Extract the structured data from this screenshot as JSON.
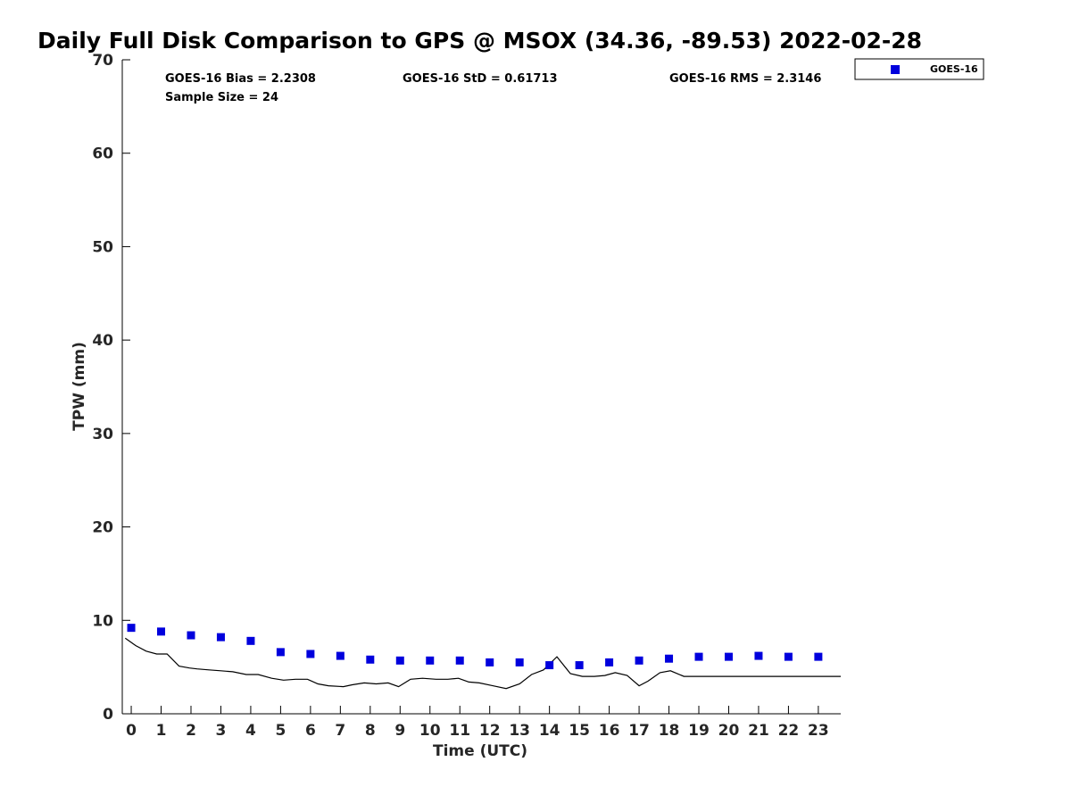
{
  "chart_data": {
    "type": "scatter",
    "title": "Daily Full Disk Comparison to GPS @ MSOX (34.36, -89.53) 2022-02-28",
    "xlabel": "Time (UTC)",
    "ylabel": "TPW (mm)",
    "xlim": [
      -0.3,
      23.75
    ],
    "ylim": [
      0,
      70
    ],
    "x_ticks": [
      0,
      1,
      2,
      3,
      4,
      5,
      6,
      7,
      8,
      9,
      10,
      11,
      12,
      13,
      14,
      15,
      16,
      17,
      18,
      19,
      20,
      21,
      22,
      23
    ],
    "y_ticks": [
      0,
      10,
      20,
      30,
      40,
      50,
      60,
      70
    ],
    "grid": false,
    "legend_position": "top-right (outside plot)",
    "series": [
      {
        "name": "GOES-16",
        "kind": "scatter",
        "marker": "square",
        "color": "#0000dd",
        "x": [
          0,
          1,
          2,
          3,
          4,
          5,
          6,
          7,
          8,
          9,
          10,
          11,
          12,
          13,
          14,
          15,
          16,
          17,
          18,
          19,
          20,
          21,
          22,
          23
        ],
        "y": [
          9.2,
          8.8,
          8.4,
          8.2,
          7.8,
          6.6,
          6.4,
          6.2,
          5.8,
          5.7,
          5.7,
          5.7,
          5.5,
          5.5,
          5.2,
          5.2,
          5.5,
          5.7,
          5.9,
          6.1,
          6.1,
          6.2,
          6.1,
          6.1
        ]
      },
      {
        "kind": "line",
        "color": "#000000",
        "x": [
          -0.2,
          0.15,
          0.5,
          0.85,
          1.2,
          1.6,
          1.95,
          2.2,
          2.6,
          3.0,
          3.4,
          3.85,
          4.25,
          4.7,
          5.1,
          5.5,
          5.9,
          6.25,
          6.6,
          7.1,
          7.4,
          7.8,
          8.2,
          8.6,
          8.95,
          9.35,
          9.75,
          10.2,
          10.6,
          10.95,
          11.3,
          11.65,
          12.1,
          12.55,
          13.0,
          13.4,
          13.8,
          14.25,
          14.7,
          15.1,
          15.5,
          15.85,
          16.2,
          16.6,
          17.0,
          17.3,
          17.7,
          18.05,
          18.5,
          18.95,
          19.35,
          19.75,
          20.1,
          20.5,
          20.95,
          21.25,
          21.6,
          21.95,
          22.35,
          22.8,
          23.2,
          23.75
        ],
        "y": [
          8.1,
          7.3,
          6.7,
          6.4,
          6.4,
          5.1,
          4.9,
          4.8,
          4.7,
          4.6,
          4.5,
          4.2,
          4.2,
          3.8,
          3.6,
          3.7,
          3.7,
          3.2,
          3.0,
          2.9,
          3.1,
          3.3,
          3.2,
          3.3,
          2.9,
          3.7,
          3.8,
          3.7,
          3.7,
          3.8,
          3.4,
          3.3,
          3.0,
          2.7,
          3.2,
          4.2,
          4.7,
          6.1,
          4.3,
          4.0,
          4.0,
          4.1,
          4.4,
          4.1,
          3.0,
          3.5,
          4.4,
          4.6,
          4.0,
          4.0,
          4.0,
          4.0,
          4.0,
          4.0,
          4.0,
          4.0,
          4.0,
          4.0,
          4.0,
          4.0,
          4.0,
          4.0
        ]
      }
    ],
    "annotations": {
      "bias": "GOES-16 Bias = 2.2308",
      "sample_size": "Sample Size = 24",
      "std": "GOES-16 StD = 0.61713",
      "rms": "GOES-16 RMS = 2.3146"
    },
    "legend_entries": [
      "GOES-16"
    ]
  }
}
